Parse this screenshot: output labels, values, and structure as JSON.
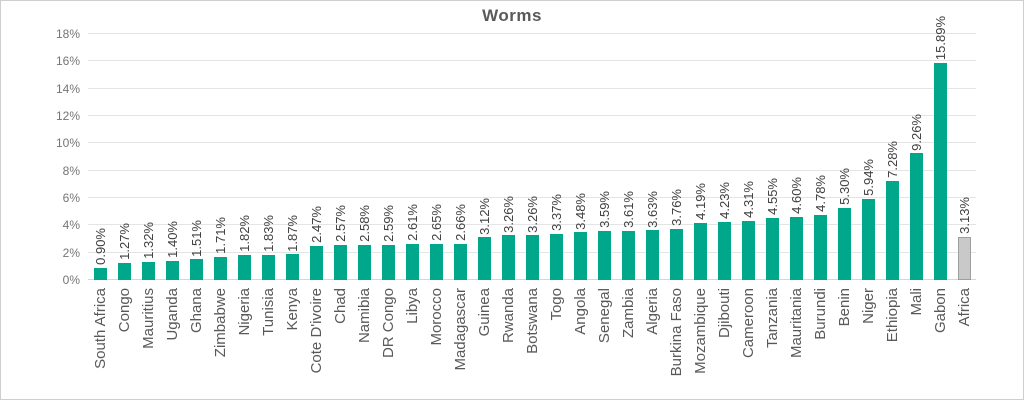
{
  "chart_data": {
    "type": "bar",
    "title": "Worms",
    "categories": [
      "South Africa",
      "Congo",
      "Mauritius",
      "Uganda",
      "Ghana",
      "Zimbabwe",
      "Nigeria",
      "Tunisia",
      "Kenya",
      "Cote D'ivoire",
      "Chad",
      "Namibia",
      "DR Congo",
      "Libya",
      "Morocco",
      "Madagascar",
      "Guinea",
      "Rwanda",
      "Botswana",
      "Togo",
      "Angola",
      "Senegal",
      "Zambia",
      "Algeria",
      "Burkina Faso",
      "Mozambique",
      "Djibouti",
      "Cameroon",
      "Tanzania",
      "Mauritania",
      "Burundi",
      "Benin",
      "Niger",
      "Ethiopia",
      "Mali",
      "Gabon",
      "Africa"
    ],
    "values": [
      0.9,
      1.27,
      1.32,
      1.4,
      1.51,
      1.71,
      1.82,
      1.83,
      1.87,
      2.47,
      2.57,
      2.58,
      2.59,
      2.61,
      2.65,
      2.66,
      3.12,
      3.26,
      3.26,
      3.37,
      3.48,
      3.59,
      3.61,
      3.63,
      3.76,
      4.19,
      4.23,
      4.31,
      4.55,
      4.6,
      4.78,
      5.3,
      5.94,
      7.28,
      9.26,
      15.89,
      3.13
    ],
    "value_labels": [
      "0.90%",
      "1.27%",
      "1.32%",
      "1.40%",
      "1.51%",
      "1.71%",
      "1.82%",
      "1.83%",
      "1.87%",
      "2.47%",
      "2.57%",
      "2.58%",
      "2.59%",
      "2.61%",
      "2.65%",
      "2.66%",
      "3.12%",
      "3.26%",
      "3.26%",
      "3.37%",
      "3.48%",
      "3.59%",
      "3.61%",
      "3.63%",
      "3.76%",
      "4.19%",
      "4.23%",
      "4.31%",
      "4.55%",
      "4.60%",
      "4.78%",
      "5.30%",
      "5.94%",
      "7.28%",
      "9.26%",
      "15.89%",
      "3.13%"
    ],
    "yticks": [
      "0%",
      "2%",
      "4%",
      "6%",
      "8%",
      "10%",
      "12%",
      "14%",
      "16%",
      "18%"
    ],
    "ylim": [
      0,
      18
    ],
    "xlabel": "",
    "ylabel": "",
    "grid": true,
    "legend": false,
    "label_rotation": "90deg-bottom-to-top",
    "bar_color": "#00a78b",
    "highlight_category": "Africa",
    "highlight_color": "#c9c9c9",
    "gridline_color": "#e4e4e4",
    "text_color": "#595959"
  }
}
